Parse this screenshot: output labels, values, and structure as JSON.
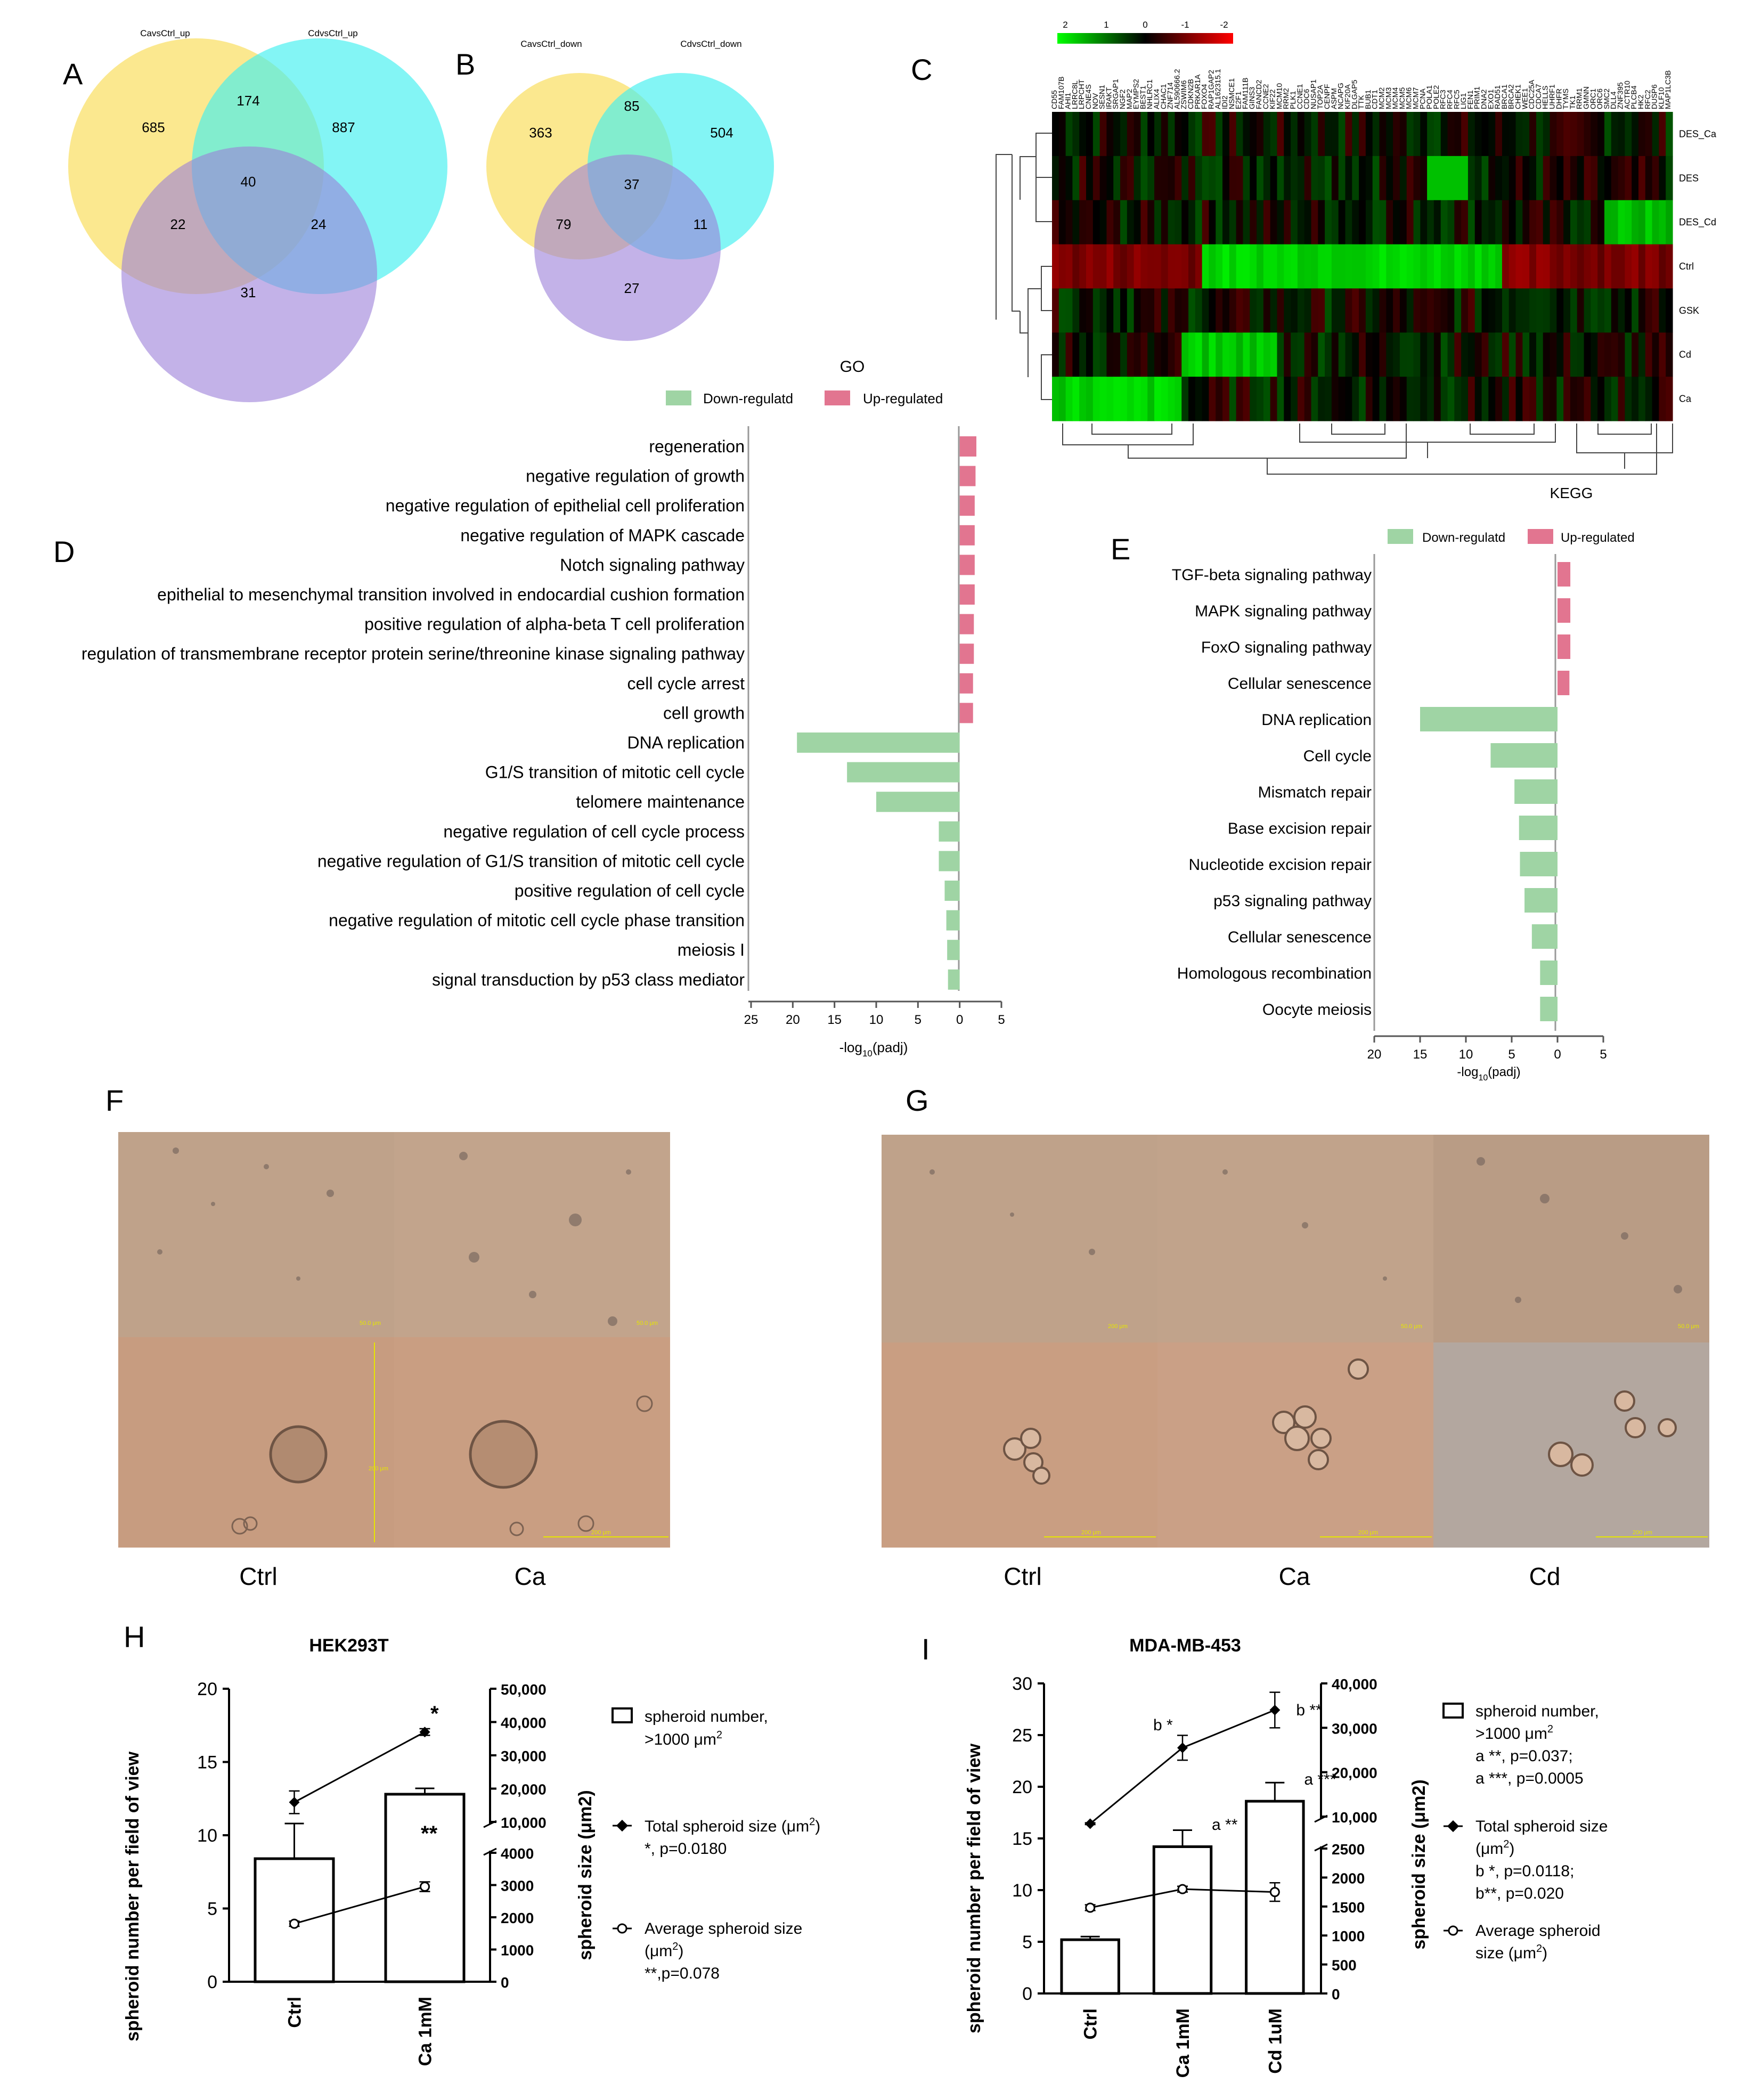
{
  "panel_labels": [
    "A",
    "B",
    "C",
    "D",
    "E",
    "F",
    "G",
    "H",
    "I"
  ],
  "venn_A": {
    "set1": "CavsCtrl_up",
    "set2": "CdvsCtrl_up",
    "regions": [
      "685",
      "174",
      "887",
      "40",
      "22",
      "24",
      "31"
    ]
  },
  "venn_B": {
    "set1": "CavsCtrl_down",
    "set2": "CdvsCtrl_down",
    "regions": [
      "363",
      "85",
      "504",
      "37",
      "79",
      "11",
      "27"
    ]
  },
  "heatmap": {
    "scale_ticks": [
      "2",
      "1",
      "0",
      "-1",
      "-2"
    ],
    "row_labels": [
      "DES_Ca",
      "DES",
      "DES_Cd",
      "Ctrl",
      "GSK",
      "Cd",
      "Ca"
    ],
    "column_genes": [
      "CD55",
      "FAM107B",
      "AHI1",
      "LRRC8L",
      "LRPCHT",
      "CNE4S",
      "NOV",
      "SESN1",
      "IRAKT",
      "SRGAP1",
      "NGF2",
      "MAP2",
      "EYMPS2",
      "BEST1",
      "NHLRC1",
      "ALIX4",
      "CHAC1",
      "ZNF714",
      "AL590666.2",
      "ZSWIM6",
      "CDKN2B",
      "PRKAR1A",
      "FOXO4",
      "RAP1GAP2",
      "AL162315.1",
      "IDI2",
      "NSMCE1",
      "E2F1",
      "FAM111B",
      "GINS3",
      "FANCD2",
      "CCNE2",
      "KIF22",
      "MCM10",
      "RRM2",
      "PLK1",
      "CCNE1",
      "CDC6",
      "NUSAP1",
      "TOP2A",
      "CENPF",
      "ASPM",
      "NCAPG",
      "KIF20A",
      "DLGAP5",
      "TTK",
      "BUB1",
      "CDT1",
      "MCM2",
      "MCM3",
      "MCM4",
      "MCM5",
      "MCM6",
      "MCM7",
      "PCNA",
      "POLA1",
      "POLE2",
      "RFC3",
      "RFC4",
      "RFC5",
      "LIG1",
      "FEN1",
      "PRIM1",
      "DNA2",
      "EXO1",
      "RAD51",
      "BRCA1",
      "BRCA2",
      "CHEK1",
      "WEE1",
      "CDC25A",
      "CDCA7",
      "HELLS",
      "UHRF1",
      "DHFR",
      "TYMS",
      "TK1",
      "RRM1",
      "GMNN",
      "ORC1",
      "ORC6",
      "SMC2",
      "DLL4",
      "ZNF395",
      "ACTR10",
      "PLCB4",
      "HK2",
      "RFC2",
      "DUSP6",
      "KLF10",
      "MAP1LC3B"
    ],
    "footer": "KEGG"
  },
  "go_chart": {
    "title": "GO",
    "legend": [
      "Down-regulatd",
      "Up-regulated"
    ],
    "xlabel_main": "-log",
    "xlabel_sub": "10",
    "xlabel_tail": "(padj)",
    "colors": {
      "down": "#9fd4a4",
      "up": "#e27590"
    }
  },
  "kegg_chart": {
    "legend": [
      "Down-regulatd",
      "Up-regulated"
    ],
    "xlabel_main": "-log",
    "xlabel_sub": "10",
    "xlabel_tail": "(padj)"
  },
  "chart_data": [
    {
      "type": "bar",
      "orientation": "horizontal",
      "panel": "D",
      "title": "GO",
      "categories": [
        "regeneration",
        "negative regulation of growth",
        "negative regulation of epithelial cell proliferation",
        "negative regulation of MAPK cascade",
        "Notch signaling pathway",
        "epithelial to mesenchymal transition involved in endocardial cushion formation",
        "positive regulation of alpha-beta T cell proliferation",
        "regulation of transmembrane receptor protein serine/threonine kinase signaling pathway",
        "cell cycle arrest",
        "cell growth",
        "DNA replication",
        "G1/S transition of mitotic cell cycle",
        "telomere maintenance",
        "negative regulation of cell cycle process",
        "negative regulation of G1/S transition of mitotic cell cycle",
        "positive regulation of cell cycle",
        "negative regulation of mitotic cell cycle phase transition",
        "meiosis I",
        "signal transduction by p53 class mediator"
      ],
      "values": [
        2.0,
        1.9,
        1.8,
        1.8,
        1.8,
        1.8,
        1.7,
        1.7,
        1.6,
        1.6,
        -19.5,
        -13.5,
        -10.0,
        -2.5,
        -2.5,
        -1.8,
        -1.6,
        -1.5,
        -1.4
      ],
      "series": [
        {
          "name": "Down-regulatd"
        },
        {
          "name": "Up-regulated"
        }
      ],
      "xlim": [
        -25,
        5
      ],
      "xticks": [
        "25",
        "20",
        "15",
        "10",
        "5",
        "0",
        "5"
      ],
      "xlabel": "-log10(padj)"
    },
    {
      "type": "bar",
      "orientation": "horizontal",
      "panel": "E",
      "categories": [
        "TGF-beta signaling pathway",
        "MAPK signaling pathway",
        "FoxO signaling pathway",
        "Cellular senescence",
        "DNA replication",
        "Cell cycle",
        "Mismatch repair",
        "Base excision repair",
        "Nucleotide excision repair",
        "p53 signaling pathway",
        "Cellular senescence",
        "Homologous recombination",
        "Oocyte meiosis"
      ],
      "values": [
        1.4,
        1.4,
        1.4,
        1.3,
        -15.0,
        -7.3,
        -4.7,
        -4.2,
        -4.1,
        -3.6,
        -2.8,
        -1.9,
        -1.9
      ],
      "series": [
        {
          "name": "Down-regulatd"
        },
        {
          "name": "Up-regulated"
        }
      ],
      "xlim": [
        -20,
        5
      ],
      "xticks": [
        "20",
        "15",
        "10",
        "5",
        "0",
        "5"
      ],
      "xlabel": "-log10(padj)"
    },
    {
      "type": "bar",
      "panel": "H",
      "title": "HEK293T",
      "categories": [
        "Ctrl",
        "Ca 1mM"
      ],
      "series": [
        {
          "name": "spheroid number, >1000 μm2",
          "values": [
            8.4,
            12.8
          ],
          "errors": [
            2.4,
            0.4
          ],
          "axis": "left"
        },
        {
          "name": "Total spheroid size (μm2)",
          "values": [
            15900,
            37000
          ],
          "errors": [
            3400,
            1000
          ],
          "axis": "right"
        },
        {
          "name": "Average spheroid size (μm2)",
          "values": [
            1800,
            2950
          ],
          "errors": [
            80,
            150
          ],
          "axis": "right"
        }
      ],
      "ylabel": "spheroid number per field of view",
      "ylabel_right": "spheroid size (μm2)",
      "ylim": [
        0,
        20
      ],
      "yticks_left": [
        "0",
        "5",
        "10",
        "15",
        "20"
      ],
      "yticks_right": [
        "0",
        "1000",
        "2000",
        "3000",
        "4000",
        "10,000",
        "20,000",
        "30,000",
        "40,000",
        "50,000"
      ]
    },
    {
      "type": "bar",
      "panel": "I",
      "title": "MDA-MB-453",
      "categories": [
        "Ctrl",
        "Ca 1mM",
        "Cd 1uM"
      ],
      "series": [
        {
          "name": "spheroid number, >1000 μm2",
          "values": [
            5.2,
            14.2,
            18.6
          ],
          "errors": [
            0.3,
            1.6,
            1.8
          ],
          "axis": "left"
        },
        {
          "name": "Total spheroid size (μm2)",
          "values": [
            8400,
            25500,
            34000
          ],
          "errors": [
            200,
            2800,
            4000
          ],
          "axis": "right"
        },
        {
          "name": "Average spheroid size (μm2)",
          "values": [
            1480,
            1800,
            1750
          ],
          "errors": [
            50,
            50,
            160
          ],
          "axis": "right"
        }
      ],
      "ylabel": "spheroid number per field of view",
      "ylabel_right": "spheroid size (μm2)",
      "ylim": [
        0,
        30
      ],
      "yticks_left": [
        "0",
        "5",
        "10",
        "15",
        "20",
        "25",
        "30"
      ],
      "yticks_right": [
        "0",
        "500",
        "1000",
        "1500",
        "2000",
        "2500",
        "10,000",
        "20,000",
        "30,000",
        "40,000"
      ]
    }
  ],
  "images_F": {
    "labels": [
      "Ctrl",
      "Ca"
    ],
    "scale_top": [
      "50.0 μm",
      "50.0 μm"
    ],
    "scale_bottom": [
      "200 μm",
      "200 μm"
    ]
  },
  "images_G": {
    "labels": [
      "Ctrl",
      "Ca",
      "Cd"
    ],
    "scale_top": [
      "200 μm",
      "50.0 μm",
      "50.0 μm"
    ],
    "scale_bottom": [
      "200 μm",
      "200 μm",
      "200 μm"
    ]
  },
  "panel_H": {
    "significance": [
      "*",
      "**"
    ],
    "legend": {
      "bar_line1": "spheroid number,",
      "bar_line2": ">1000 μm",
      "total_line1": "Total spheroid size (μm",
      "total_line2": "*, p=0.0180",
      "avg_line1": "Average spheroid size",
      "avg_line2": "(μm",
      "avg_line3": "**,p=0.078"
    }
  },
  "panel_I": {
    "annotations": [
      "a **",
      "a ***",
      "b *",
      "b **"
    ],
    "legend": {
      "bar_line1": "spheroid number,",
      "bar_line2": ">1000 μm",
      "bar_line3": "a **, p=0.037;",
      "bar_line4": "a ***, p=0.0005",
      "total_line1": "Total spheroid size",
      "total_line2": "(μm",
      "total_line3": "b *, p=0.0118;",
      "total_line4": "b**, p=0.020",
      "avg_line1": "Average spheroid",
      "avg_line2": "size (μm"
    }
  },
  "superscript_2": "2",
  "close_paren": ")"
}
